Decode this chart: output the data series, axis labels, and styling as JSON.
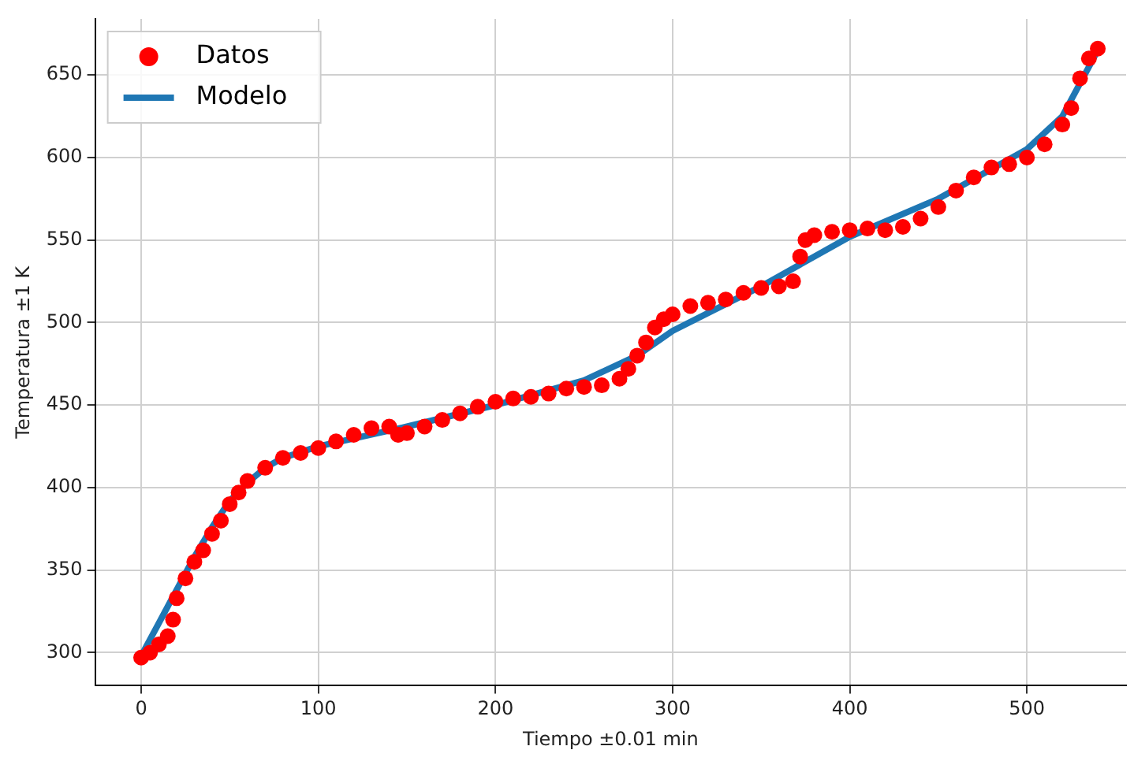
{
  "chart_data": {
    "type": "scatter",
    "xlabel": "Tiempo ±0.01 min",
    "ylabel": "Temperatura ±1 K",
    "xlim": [
      -26,
      556
    ],
    "ylim": [
      280,
      684
    ],
    "xticks": [
      0,
      100,
      200,
      300,
      400,
      500
    ],
    "yticks": [
      300,
      350,
      400,
      450,
      500,
      550,
      600,
      650
    ],
    "grid": true,
    "legend": "top left",
    "series": [
      {
        "name": "Datos",
        "marker": "circle",
        "color": "#ff0000",
        "x": [
          0,
          5,
          10,
          15,
          18,
          20,
          25,
          30,
          35,
          40,
          45,
          50,
          55,
          60,
          70,
          80,
          90,
          100,
          110,
          120,
          130,
          140,
          145,
          150,
          160,
          170,
          180,
          190,
          200,
          210,
          220,
          230,
          240,
          250,
          260,
          270,
          275,
          280,
          285,
          290,
          295,
          300,
          310,
          320,
          330,
          340,
          350,
          360,
          368,
          372,
          375,
          380,
          390,
          400,
          410,
          420,
          430,
          440,
          450,
          460,
          470,
          480,
          490,
          500,
          510,
          520,
          525,
          530,
          535,
          540
        ],
        "values": [
          297,
          300,
          305,
          310,
          320,
          333,
          345,
          355,
          362,
          372,
          380,
          390,
          397,
          404,
          412,
          418,
          421,
          424,
          428,
          432,
          436,
          437,
          432,
          433,
          437,
          441,
          445,
          449,
          452,
          454,
          455,
          457,
          460,
          461,
          462,
          466,
          472,
          480,
          488,
          497,
          502,
          505,
          510,
          512,
          514,
          518,
          521,
          522,
          525,
          540,
          550,
          553,
          555,
          556,
          557,
          556,
          558,
          563,
          570,
          580,
          588,
          594,
          596,
          600,
          608,
          620,
          630,
          648,
          660,
          666
        ]
      },
      {
        "name": "Modelo",
        "type": "line",
        "marker": "none",
        "color": "#1f77b4",
        "x": [
          0,
          10,
          20,
          30,
          40,
          50,
          60,
          70,
          80,
          100,
          150,
          200,
          250,
          280,
          300,
          350,
          400,
          450,
          500,
          520,
          540
        ],
        "values": [
          298,
          318,
          338,
          358,
          376,
          392,
          403,
          412,
          418,
          425,
          437,
          450,
          465,
          480,
          495,
          522,
          552,
          575,
          605,
          625,
          665
        ]
      }
    ]
  }
}
